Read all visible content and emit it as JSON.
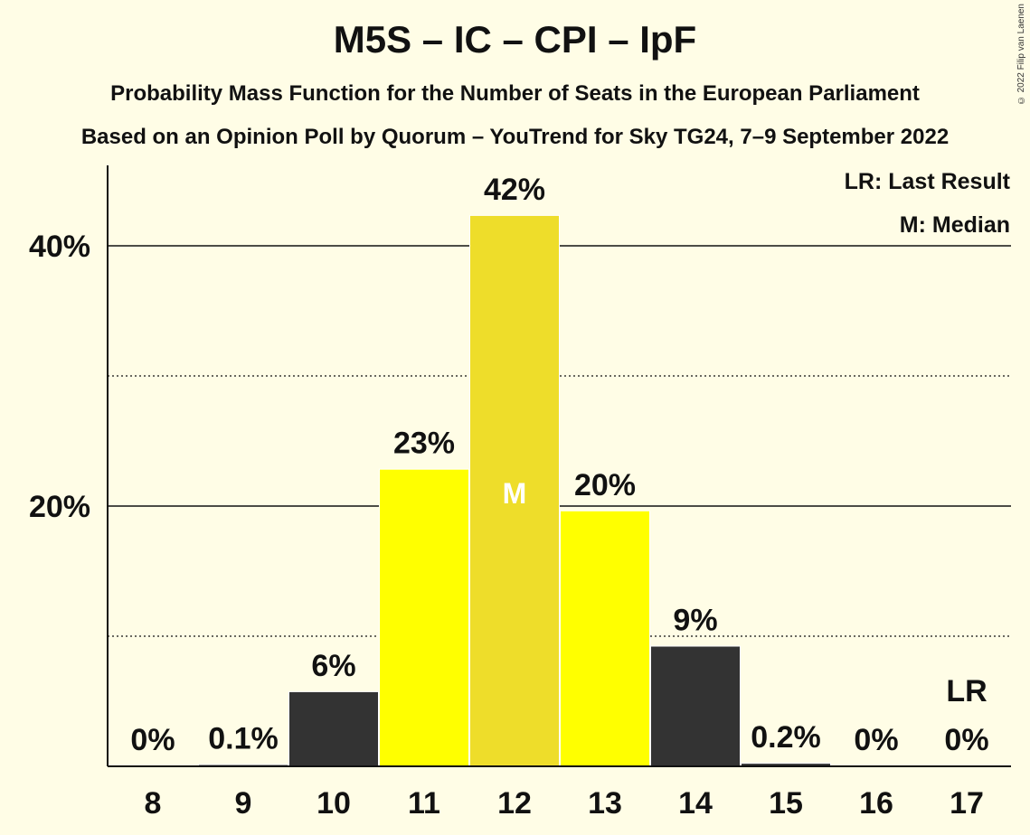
{
  "header": {
    "title": "M5S – IC – CPI – IpF",
    "subtitle1": "Probability Mass Function for the Number of Seats in the European Parliament",
    "subtitle2": "Based on an Opinion Poll by Quorum – YouTrend for Sky TG24, 7–9 September 2022",
    "copyright": "© 2022 Filip van Laenen"
  },
  "legend": {
    "lr": "LR: Last Result",
    "median": "M: Median"
  },
  "colors": {
    "background": "#fffde6",
    "bar_dark": "#333333",
    "bar_yellow": "#ffff00",
    "bar_median": "#eedd2a"
  },
  "chart_data": {
    "type": "bar",
    "categories": [
      "8",
      "9",
      "10",
      "11",
      "12",
      "13",
      "14",
      "15",
      "16",
      "17"
    ],
    "values": [
      0,
      0.1,
      5.7,
      22.8,
      42.3,
      19.6,
      9.2,
      0.2,
      0,
      0
    ],
    "labels": [
      "0%",
      "0.1%",
      "6%",
      "23%",
      "42%",
      "20%",
      "9%",
      "0.2%",
      "0%",
      "0%"
    ],
    "bar_colors": [
      "#333333",
      "#333333",
      "#333333",
      "#ffff00",
      "#eedd2a",
      "#ffff00",
      "#333333",
      "#333333",
      "#333333",
      "#333333"
    ],
    "median_index": 4,
    "median_marker": "M",
    "last_result_index": 9,
    "last_result_marker": "LR",
    "yticks": [
      20,
      40
    ],
    "ytick_labels": [
      "20%",
      "40%"
    ],
    "minor_gridlines": [
      10,
      30
    ],
    "ylim": [
      0,
      46
    ],
    "grid": true,
    "legend_position": "top-right"
  }
}
